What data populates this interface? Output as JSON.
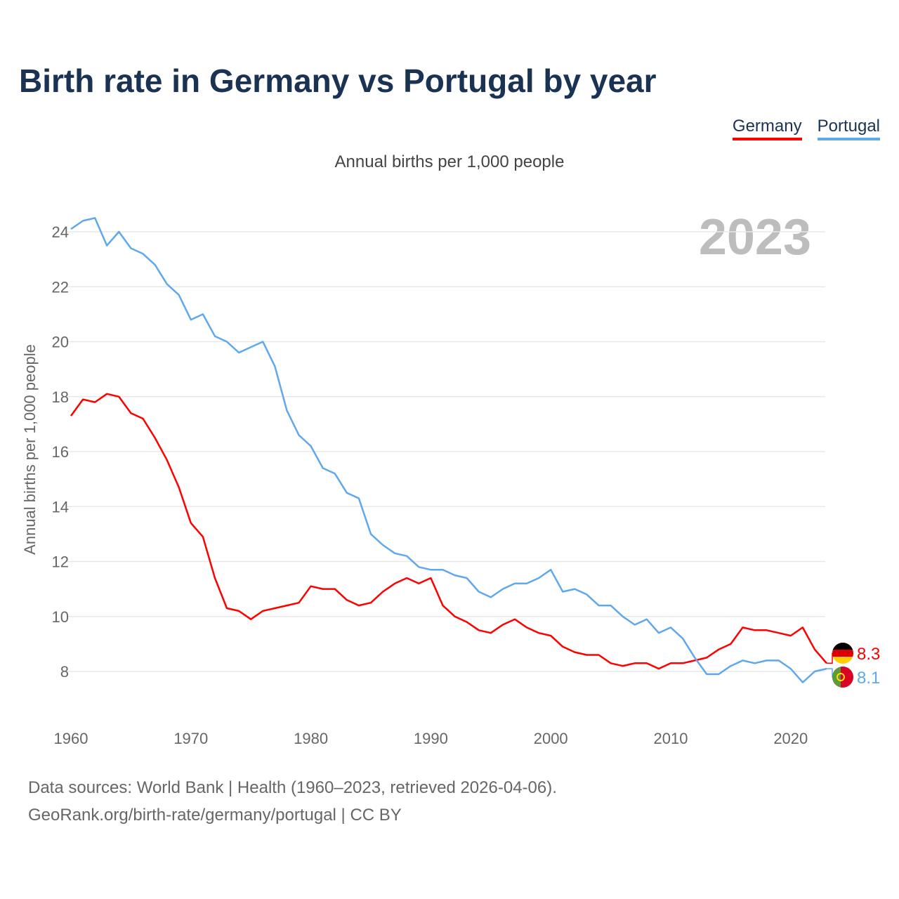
{
  "title": "Birth rate in Germany vs Portugal by year",
  "subtitle": "Annual births per 1,000 people",
  "year_label": "2023",
  "source_line1": "Data sources: World Bank | Health (1960–2023, retrieved 2026-04-06).",
  "source_line2": "GeoRank.org/birth-rate/germany/portugal | CC BY",
  "chart_data": {
    "type": "line",
    "title": "Birth rate in Germany vs Portugal by year",
    "xlabel": "",
    "ylabel": "Annual births per 1,000 people",
    "xlim": [
      1960,
      2023
    ],
    "ylim": [
      6.5,
      25
    ],
    "x_ticks": [
      "1960",
      "1970",
      "1980",
      "1990",
      "2000",
      "2010",
      "2020"
    ],
    "y_ticks": [
      "8",
      "10",
      "12",
      "14",
      "16",
      "18",
      "20",
      "22",
      "24"
    ],
    "grid": true,
    "legend_placement": "top-right",
    "x_start": 1960,
    "series": [
      {
        "name": "Germany",
        "color": "#ff0000",
        "end_label": "8.3",
        "values": [
          17.3,
          17.9,
          17.8,
          18.1,
          18.0,
          17.4,
          17.2,
          16.5,
          15.7,
          14.7,
          13.4,
          12.9,
          11.4,
          10.3,
          10.2,
          9.9,
          10.2,
          10.3,
          10.4,
          10.5,
          11.1,
          11.0,
          11.0,
          10.6,
          10.4,
          10.5,
          10.9,
          11.2,
          11.4,
          11.2,
          11.4,
          10.4,
          10.0,
          9.8,
          9.5,
          9.4,
          9.7,
          9.9,
          9.6,
          9.4,
          9.3,
          8.9,
          8.7,
          8.6,
          8.6,
          8.3,
          8.2,
          8.3,
          8.3,
          8.1,
          8.3,
          8.3,
          8.4,
          8.5,
          8.8,
          9.0,
          9.6,
          9.5,
          9.5,
          9.4,
          9.3,
          9.6,
          8.8,
          8.3
        ]
      },
      {
        "name": "Portugal",
        "color": "#5fa8ee",
        "end_label": "8.1",
        "values": [
          24.1,
          24.4,
          24.5,
          23.5,
          24.0,
          23.4,
          23.2,
          22.8,
          22.1,
          21.7,
          20.8,
          21.0,
          20.2,
          20.0,
          19.6,
          19.8,
          20.0,
          19.1,
          17.5,
          16.6,
          16.2,
          15.4,
          15.2,
          14.5,
          14.3,
          13.0,
          12.6,
          12.3,
          12.2,
          11.8,
          11.7,
          11.7,
          11.5,
          11.4,
          10.9,
          10.7,
          11.0,
          11.2,
          11.2,
          11.4,
          11.7,
          10.9,
          11.0,
          10.8,
          10.4,
          10.4,
          10.0,
          9.7,
          9.9,
          9.4,
          9.6,
          9.2,
          8.5,
          7.9,
          7.9,
          8.2,
          8.4,
          8.3,
          8.4,
          8.4,
          8.1,
          7.6,
          8.0,
          8.1
        ]
      }
    ]
  }
}
